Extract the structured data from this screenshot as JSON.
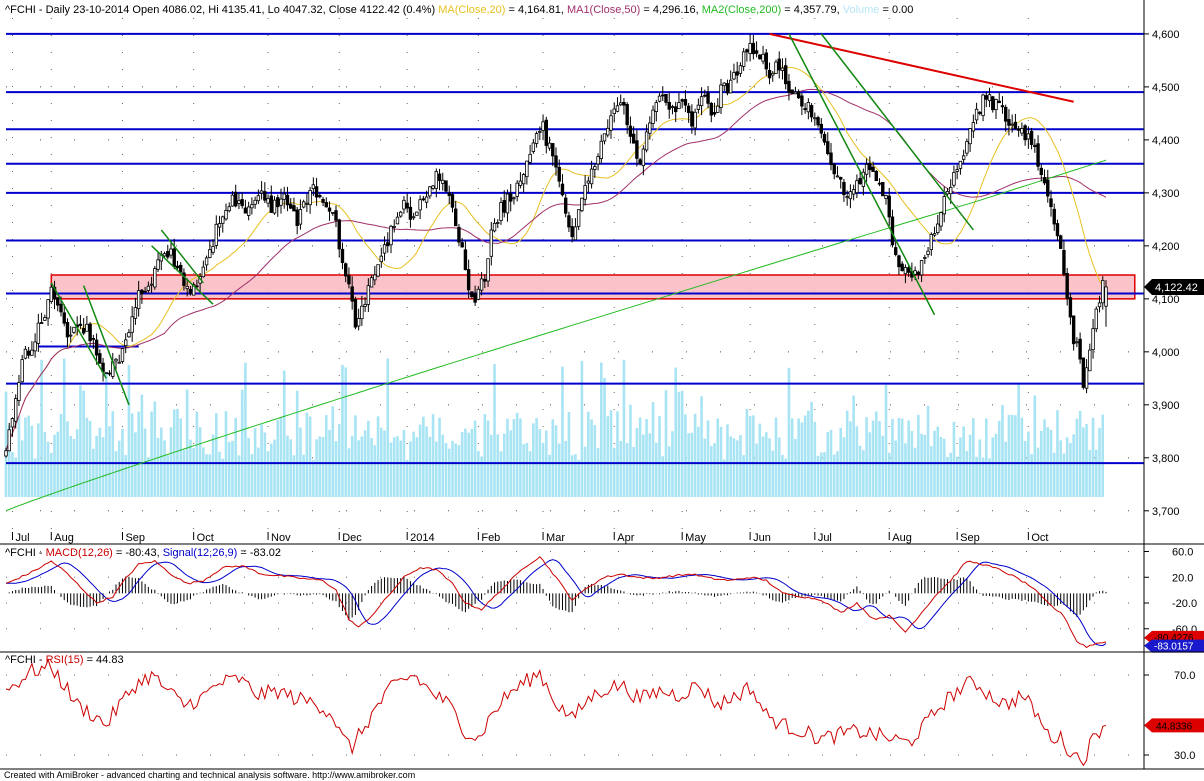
{
  "footer": "Created with AmiBroker - advanced charting and technical analysis software. http://www.amibroker.com",
  "colors": {
    "price_candles": "#000000",
    "ma20": "#e8c020",
    "ma50": "#a0306a",
    "ma200": "#22bb22",
    "volume": "#a8e4f4",
    "support_resistance": "#0000cc",
    "downtrend_line": "#dd0000",
    "trend_channels": "#118811",
    "zone_fill": "#f8b8c0",
    "zone_border": "#dd0000",
    "macd": "#cc0000",
    "signal": "#0000cc",
    "rsi": "#cc0000",
    "histogram": "#000000"
  },
  "chart_data": [
    {
      "type": "candlestick",
      "panel": "price",
      "title_segments": [
        {
          "text": "^FCHI - Daily 23-10-2014 Open 4086.02, Hi 4135.41, Lo 4047.32, Close 4122.42 (0.4%) ",
          "color": "#000000"
        },
        {
          "text": "MA(Close,20)",
          "color": "#e8c020"
        },
        {
          "text": " = 4,164.81, ",
          "color": "#000000"
        },
        {
          "text": "MA1(Close,50)",
          "color": "#a0306a"
        },
        {
          "text": " = 4,296.16, ",
          "color": "#000000"
        },
        {
          "text": "MA2(Close,200)",
          "color": "#22bb22"
        },
        {
          "text": " = 4,357.79, ",
          "color": "#000000"
        },
        {
          "text": "Volume",
          "color": "#b8e6f8"
        },
        {
          "text": " = 0.00",
          "color": "#000000"
        }
      ],
      "symbol": "^FCHI",
      "date": "23-10-2014",
      "ohlc": {
        "open": 4086.02,
        "high": 4135.41,
        "low": 4047.32,
        "close": 4122.42,
        "change_pct": 0.4
      },
      "indicators": {
        "ma20": 4164.81,
        "ma50": 4296.16,
        "ma200": 4357.79,
        "volume": 0.0
      },
      "ylim": [
        3660,
        4630
      ],
      "yticks": [
        3700,
        3800,
        3900,
        4000,
        4100,
        4200,
        4300,
        4400,
        4500,
        4600
      ],
      "ytick_labels": [
        "3,700",
        "3,800",
        "3,900",
        "4,000",
        "4,100",
        "4,200",
        "4,300",
        "4,400",
        "4,500",
        "4,600"
      ],
      "xlim": [
        0,
        340
      ],
      "month_labels": [
        {
          "label": "Jul",
          "x": 2
        },
        {
          "label": "Aug",
          "x": 14
        },
        {
          "label": "Sep",
          "x": 36
        },
        {
          "label": "Oct",
          "x": 58
        },
        {
          "label": "Nov",
          "x": 81
        },
        {
          "label": "Dec",
          "x": 103
        },
        {
          "label": "2014",
          "x": 124
        },
        {
          "label": "Feb",
          "x": 146
        },
        {
          "label": "Mar",
          "x": 166
        },
        {
          "label": "Apr",
          "x": 188
        },
        {
          "label": "May",
          "x": 209
        },
        {
          "label": "Jun",
          "x": 230
        },
        {
          "label": "Jul",
          "x": 250
        },
        {
          "label": "Aug",
          "x": 273
        },
        {
          "label": "Sep",
          "x": 294
        },
        {
          "label": "Oct",
          "x": 316
        }
      ],
      "close_anchors": [
        [
          0,
          3820
        ],
        [
          5,
          3980
        ],
        [
          10,
          4040
        ],
        [
          14,
          4110
        ],
        [
          19,
          4040
        ],
        [
          23,
          4060
        ],
        [
          27,
          4020
        ],
        [
          30,
          3960
        ],
        [
          34,
          3980
        ],
        [
          37,
          4010
        ],
        [
          41,
          4110
        ],
        [
          45,
          4140
        ],
        [
          49,
          4200
        ],
        [
          53,
          4160
        ],
        [
          57,
          4120
        ],
        [
          60,
          4140
        ],
        [
          63,
          4200
        ],
        [
          66,
          4240
        ],
        [
          70,
          4290
        ],
        [
          74,
          4260
        ],
        [
          78,
          4300
        ],
        [
          82,
          4270
        ],
        [
          86,
          4290
        ],
        [
          90,
          4250
        ],
        [
          94,
          4310
        ],
        [
          99,
          4280
        ],
        [
          102,
          4240
        ],
        [
          105,
          4140
        ],
        [
          108,
          4060
        ],
        [
          111,
          4090
        ],
        [
          114,
          4150
        ],
        [
          117,
          4190
        ],
        [
          120,
          4250
        ],
        [
          123,
          4290
        ],
        [
          126,
          4250
        ],
        [
          129,
          4290
        ],
        [
          133,
          4330
        ],
        [
          137,
          4300
        ],
        [
          140,
          4220
        ],
        [
          143,
          4130
        ],
        [
          145,
          4100
        ],
        [
          148,
          4140
        ],
        [
          150,
          4220
        ],
        [
          153,
          4270
        ],
        [
          156,
          4290
        ],
        [
          160,
          4340
        ],
        [
          163,
          4400
        ],
        [
          166,
          4420
        ],
        [
          169,
          4360
        ],
        [
          172,
          4300
        ],
        [
          175,
          4220
        ],
        [
          178,
          4280
        ],
        [
          181,
          4340
        ],
        [
          184,
          4400
        ],
        [
          187,
          4440
        ],
        [
          190,
          4470
        ],
        [
          193,
          4420
        ],
        [
          196,
          4360
        ],
        [
          199,
          4440
        ],
        [
          202,
          4480
        ],
        [
          206,
          4460
        ],
        [
          209,
          4480
        ],
        [
          212,
          4440
        ],
        [
          215,
          4480
        ],
        [
          218,
          4450
        ],
        [
          221,
          4490
        ],
        [
          224,
          4510
        ],
        [
          227,
          4540
        ],
        [
          230,
          4580
        ],
        [
          233,
          4560
        ],
        [
          236,
          4520
        ],
        [
          239,
          4540
        ],
        [
          242,
          4500
        ],
        [
          245,
          4470
        ],
        [
          248,
          4460
        ],
        [
          251,
          4440
        ],
        [
          254,
          4370
        ],
        [
          257,
          4320
        ],
        [
          260,
          4300
        ],
        [
          263,
          4310
        ],
        [
          266,
          4350
        ],
        [
          269,
          4330
        ],
        [
          272,
          4280
        ],
        [
          275,
          4180
        ],
        [
          278,
          4160
        ],
        [
          281,
          4140
        ],
        [
          284,
          4190
        ],
        [
          287,
          4220
        ],
        [
          290,
          4280
        ],
        [
          293,
          4340
        ],
        [
          296,
          4370
        ],
        [
          299,
          4430
        ],
        [
          302,
          4480
        ],
        [
          305,
          4470
        ],
        [
          308,
          4450
        ],
        [
          311,
          4420
        ],
        [
          314,
          4420
        ],
        [
          317,
          4390
        ],
        [
          320,
          4340
        ],
        [
          322,
          4300
        ],
        [
          324,
          4230
        ],
        [
          326,
          4180
        ],
        [
          328,
          4090
        ],
        [
          330,
          4030
        ],
        [
          332,
          3980
        ],
        [
          333,
          3940
        ],
        [
          335,
          3990
        ],
        [
          337,
          4070
        ],
        [
          339,
          4122
        ]
      ],
      "hlines": [
        4600,
        4490,
        4420,
        4355,
        4300,
        4210,
        4110,
        3940,
        3790
      ],
      "short_hlines": [
        {
          "from": 10,
          "to": 41,
          "y": 4010
        }
      ],
      "zone": {
        "from": 14,
        "to": 339,
        "y1": 4100,
        "y2": 4145
      },
      "downtrend_line": [
        [
          236,
          4600
        ],
        [
          330,
          4472
        ]
      ],
      "channels": [
        [
          [
            24,
            4125
          ],
          [
            38,
            3900
          ]
        ],
        [
          [
            14,
            4130
          ],
          [
            31,
            3950
          ]
        ],
        [
          [
            48,
            4230
          ],
          [
            61,
            4130
          ]
        ],
        [
          [
            45,
            4200
          ],
          [
            64,
            4090
          ]
        ],
        [
          [
            242,
            4600
          ],
          [
            287,
            4070
          ]
        ],
        [
          [
            252,
            4600
          ],
          [
            299,
            4230
          ]
        ]
      ],
      "volume_max": 100
    },
    {
      "type": "line",
      "panel": "macd",
      "series": [
        {
          "name": "MACD(12,26)",
          "last": -80.43,
          "value_label": "-80.4276",
          "color": "#cc0000"
        },
        {
          "name": "Signal(12,26,9)",
          "last": -83.02,
          "value_label": "-83.0157",
          "color": "#0000cc"
        }
      ],
      "header": {
        "prefix": "^FCHI - ",
        "macd_label": "MACD(12,26)",
        "macd_value": " = -80.43, ",
        "signal_label": "Signal(12,26,9)",
        "signal_value": " = -83.02"
      },
      "ylim": [
        -93,
        67
      ],
      "yticks": [
        60,
        20,
        -20,
        -60
      ],
      "ytick_labels": [
        "60.0",
        "20.0",
        "-20.0",
        "-60.0"
      ],
      "macd_anchors": [
        [
          0,
          10
        ],
        [
          8,
          28
        ],
        [
          14,
          45
        ],
        [
          18,
          30
        ],
        [
          22,
          10
        ],
        [
          28,
          -20
        ],
        [
          33,
          -10
        ],
        [
          37,
          18
        ],
        [
          41,
          40
        ],
        [
          46,
          45
        ],
        [
          51,
          25
        ],
        [
          56,
          10
        ],
        [
          61,
          15
        ],
        [
          67,
          35
        ],
        [
          73,
          38
        ],
        [
          79,
          25
        ],
        [
          85,
          22
        ],
        [
          92,
          18
        ],
        [
          98,
          15
        ],
        [
          102,
          0
        ],
        [
          106,
          -45
        ],
        [
          109,
          -58
        ],
        [
          113,
          -40
        ],
        [
          118,
          -10
        ],
        [
          123,
          20
        ],
        [
          128,
          35
        ],
        [
          133,
          32
        ],
        [
          138,
          10
        ],
        [
          142,
          -20
        ],
        [
          147,
          -30
        ],
        [
          151,
          -10
        ],
        [
          156,
          15
        ],
        [
          160,
          35
        ],
        [
          165,
          52
        ],
        [
          170,
          20
        ],
        [
          175,
          -15
        ],
        [
          180,
          5
        ],
        [
          185,
          20
        ],
        [
          190,
          25
        ],
        [
          195,
          20
        ],
        [
          200,
          18
        ],
        [
          206,
          22
        ],
        [
          212,
          25
        ],
        [
          218,
          18
        ],
        [
          224,
          15
        ],
        [
          230,
          20
        ],
        [
          235,
          15
        ],
        [
          240,
          -5
        ],
        [
          246,
          -10
        ],
        [
          252,
          -15
        ],
        [
          258,
          -35
        ],
        [
          263,
          -20
        ],
        [
          268,
          -45
        ],
        [
          273,
          -40
        ],
        [
          278,
          -65
        ],
        [
          283,
          -35
        ],
        [
          287,
          -10
        ],
        [
          292,
          15
        ],
        [
          297,
          45
        ],
        [
          302,
          40
        ],
        [
          307,
          32
        ],
        [
          312,
          20
        ],
        [
          317,
          5
        ],
        [
          322,
          -20
        ],
        [
          327,
          -40
        ],
        [
          331,
          -80
        ],
        [
          334,
          -88
        ],
        [
          337,
          -83
        ],
        [
          339,
          -80.43
        ]
      ],
      "signal_lag": 3
    },
    {
      "type": "line",
      "panel": "rsi",
      "series": [
        {
          "name": "RSI(15)",
          "last": 44.83,
          "value_label": "44.8336",
          "color": "#cc0000"
        }
      ],
      "header": {
        "prefix": "^FCHI - ",
        "rsi_label": "RSI(15)",
        "rsi_value": " = 44.83"
      },
      "ylim": [
        24,
        80
      ],
      "yticks": [
        70,
        30
      ],
      "ytick_labels": [
        "70.0",
        "30.0"
      ],
      "rsi_anchors": [
        [
          0,
          62
        ],
        [
          8,
          72
        ],
        [
          14,
          74
        ],
        [
          18,
          65
        ],
        [
          22,
          55
        ],
        [
          27,
          50
        ],
        [
          31,
          45
        ],
        [
          35,
          55
        ],
        [
          40,
          65
        ],
        [
          45,
          70
        ],
        [
          50,
          62
        ],
        [
          55,
          55
        ],
        [
          60,
          58
        ],
        [
          66,
          66
        ],
        [
          72,
          68
        ],
        [
          78,
          60
        ],
        [
          84,
          62
        ],
        [
          90,
          58
        ],
        [
          96,
          56
        ],
        [
          101,
          50
        ],
        [
          104,
          38
        ],
        [
          107,
          34
        ],
        [
          110,
          42
        ],
        [
          115,
          55
        ],
        [
          120,
          65
        ],
        [
          126,
          70
        ],
        [
          131,
          62
        ],
        [
          137,
          55
        ],
        [
          142,
          42
        ],
        [
          146,
          38
        ],
        [
          150,
          50
        ],
        [
          155,
          60
        ],
        [
          160,
          66
        ],
        [
          165,
          71
        ],
        [
          170,
          56
        ],
        [
          175,
          48
        ],
        [
          180,
          58
        ],
        [
          185,
          63
        ],
        [
          190,
          65
        ],
        [
          196,
          58
        ],
        [
          202,
          62
        ],
        [
          208,
          60
        ],
        [
          214,
          65
        ],
        [
          220,
          55
        ],
        [
          226,
          60
        ],
        [
          230,
          64
        ],
        [
          235,
          50
        ],
        [
          240,
          45
        ],
        [
          246,
          42
        ],
        [
          252,
          38
        ],
        [
          257,
          40
        ],
        [
          263,
          42
        ],
        [
          269,
          40
        ],
        [
          274,
          38
        ],
        [
          279,
          36
        ],
        [
          284,
          45
        ],
        [
          289,
          55
        ],
        [
          294,
          62
        ],
        [
          299,
          67
        ],
        [
          304,
          60
        ],
        [
          309,
          55
        ],
        [
          314,
          60
        ],
        [
          318,
          52
        ],
        [
          322,
          40
        ],
        [
          326,
          38
        ],
        [
          330,
          30
        ],
        [
          333,
          28
        ],
        [
          336,
          38
        ],
        [
          339,
          44.83
        ]
      ],
      "rsi_noise_amp": 4
    }
  ]
}
